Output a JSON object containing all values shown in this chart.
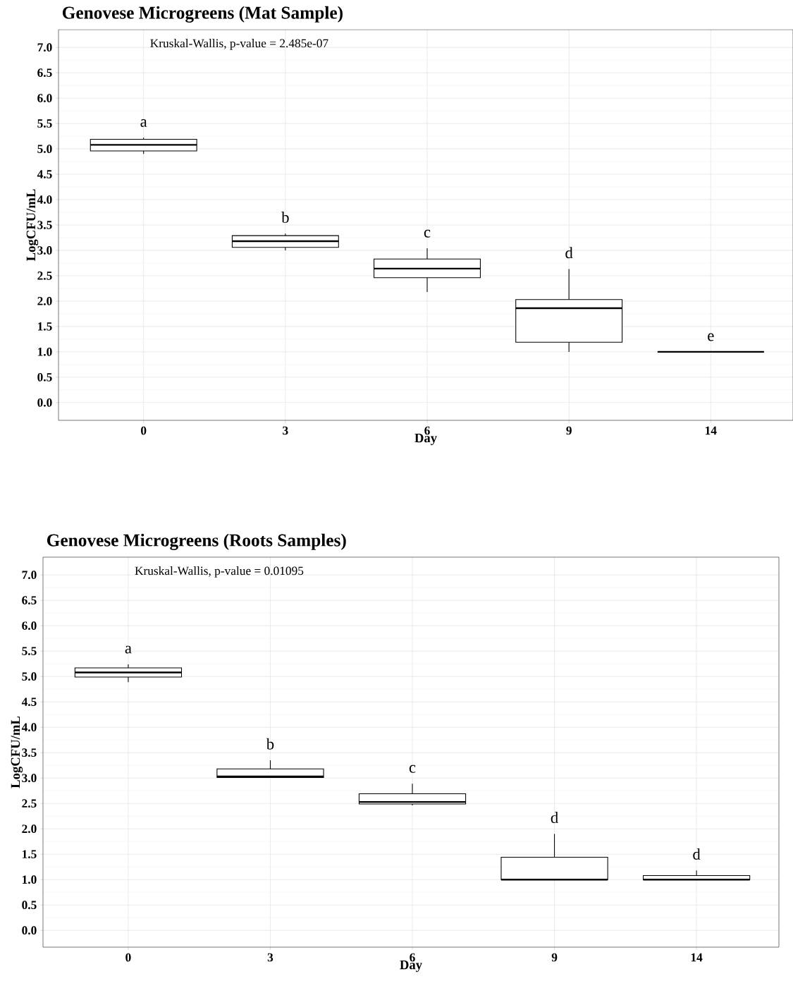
{
  "chart_data": [
    {
      "type": "box",
      "title": "Genovese Microgreens (Mat Sample)",
      "xlabel": "Day",
      "ylabel": "LogCFU/mL",
      "categories": [
        "0",
        "3",
        "6",
        "9",
        "14"
      ],
      "color": "#000000",
      "boxes": [
        {
          "low": 4.9,
          "q1": 4.96,
          "median": 5.08,
          "q3": 5.19,
          "high": 5.22
        },
        {
          "low": 3.0,
          "q1": 3.06,
          "median": 3.18,
          "q3": 3.29,
          "high": 3.33
        },
        {
          "low": 2.18,
          "q1": 2.46,
          "median": 2.64,
          "q3": 2.83,
          "high": 3.04
        },
        {
          "low": 1.0,
          "q1": 1.19,
          "median": 1.86,
          "q3": 2.03,
          "high": 2.63
        },
        {
          "low": 1.0,
          "q1": 1.0,
          "median": 1.0,
          "q3": 1.0,
          "high": 1.0
        }
      ],
      "ylim": [
        -0.35,
        7.35
      ],
      "yticks": [
        {
          "value": 0,
          "label": "0.0"
        },
        {
          "value": 0.5,
          "label": "0.5"
        },
        {
          "value": 1,
          "label": "1.0"
        },
        {
          "value": 1.5,
          "label": "1.5"
        },
        {
          "value": 2,
          "label": "2.0"
        },
        {
          "value": 2.5,
          "label": "2.5"
        },
        {
          "value": 3,
          "label": "3.0"
        },
        {
          "value": 3.5,
          "label": "3.5"
        },
        {
          "value": 4,
          "label": "4.0"
        },
        {
          "value": 4.5,
          "label": "4.5"
        },
        {
          "value": 5,
          "label": "5.0"
        },
        {
          "value": 5.5,
          "label": "5.5"
        },
        {
          "value": 6,
          "label": "6.0"
        },
        {
          "value": 6.5,
          "label": "6.5"
        },
        {
          "value": 7,
          "label": "7.0"
        }
      ],
      "grid": true,
      "annotations": [
        "Kruskal-Wallis, p-value = 2.485e-07",
        "a",
        "b",
        "c",
        "d",
        "e"
      ]
    },
    {
      "type": "box",
      "title": "Genovese Microgreens (Roots Samples)",
      "xlabel": "Day",
      "ylabel": "LogCFU/mL",
      "categories": [
        "0",
        "3",
        "6",
        "9",
        "14"
      ],
      "color": "#000000",
      "boxes": [
        {
          "low": 4.89,
          "q1": 4.99,
          "median": 5.08,
          "q3": 5.17,
          "high": 5.24
        },
        {
          "low": 3.01,
          "q1": 3.01,
          "median": 3.03,
          "q3": 3.18,
          "high": 3.35
        },
        {
          "low": 2.46,
          "q1": 2.49,
          "median": 2.53,
          "q3": 2.69,
          "high": 2.89
        },
        {
          "low": 1.0,
          "q1": 1.0,
          "median": 1.0,
          "q3": 1.44,
          "high": 1.9
        },
        {
          "low": 1.0,
          "q1": 1.0,
          "median": 1.0,
          "q3": 1.08,
          "high": 1.18
        }
      ],
      "ylim": [
        -0.33,
        7.35
      ],
      "yticks": [
        {
          "value": 0,
          "label": "0.0"
        },
        {
          "value": 0.5,
          "label": "0.5"
        },
        {
          "value": 1,
          "label": "1.0"
        },
        {
          "value": 1.5,
          "label": "1.5"
        },
        {
          "value": 2,
          "label": "2.0"
        },
        {
          "value": 2.5,
          "label": "2.5"
        },
        {
          "value": 3,
          "label": "3.0"
        },
        {
          "value": 3.5,
          "label": "3.5"
        },
        {
          "value": 4,
          "label": "4.0"
        },
        {
          "value": 4.5,
          "label": "4.5"
        },
        {
          "value": 5,
          "label": "5.0"
        },
        {
          "value": 5.5,
          "label": "5.5"
        },
        {
          "value": 6,
          "label": "6.0"
        },
        {
          "value": 6.5,
          "label": "6.5"
        },
        {
          "value": 7,
          "label": "7.0"
        }
      ],
      "grid": true,
      "annotations": [
        "Kruskal-Wallis, p-value = 0.01095",
        "a",
        "b",
        "c",
        "d",
        "d"
      ]
    }
  ]
}
